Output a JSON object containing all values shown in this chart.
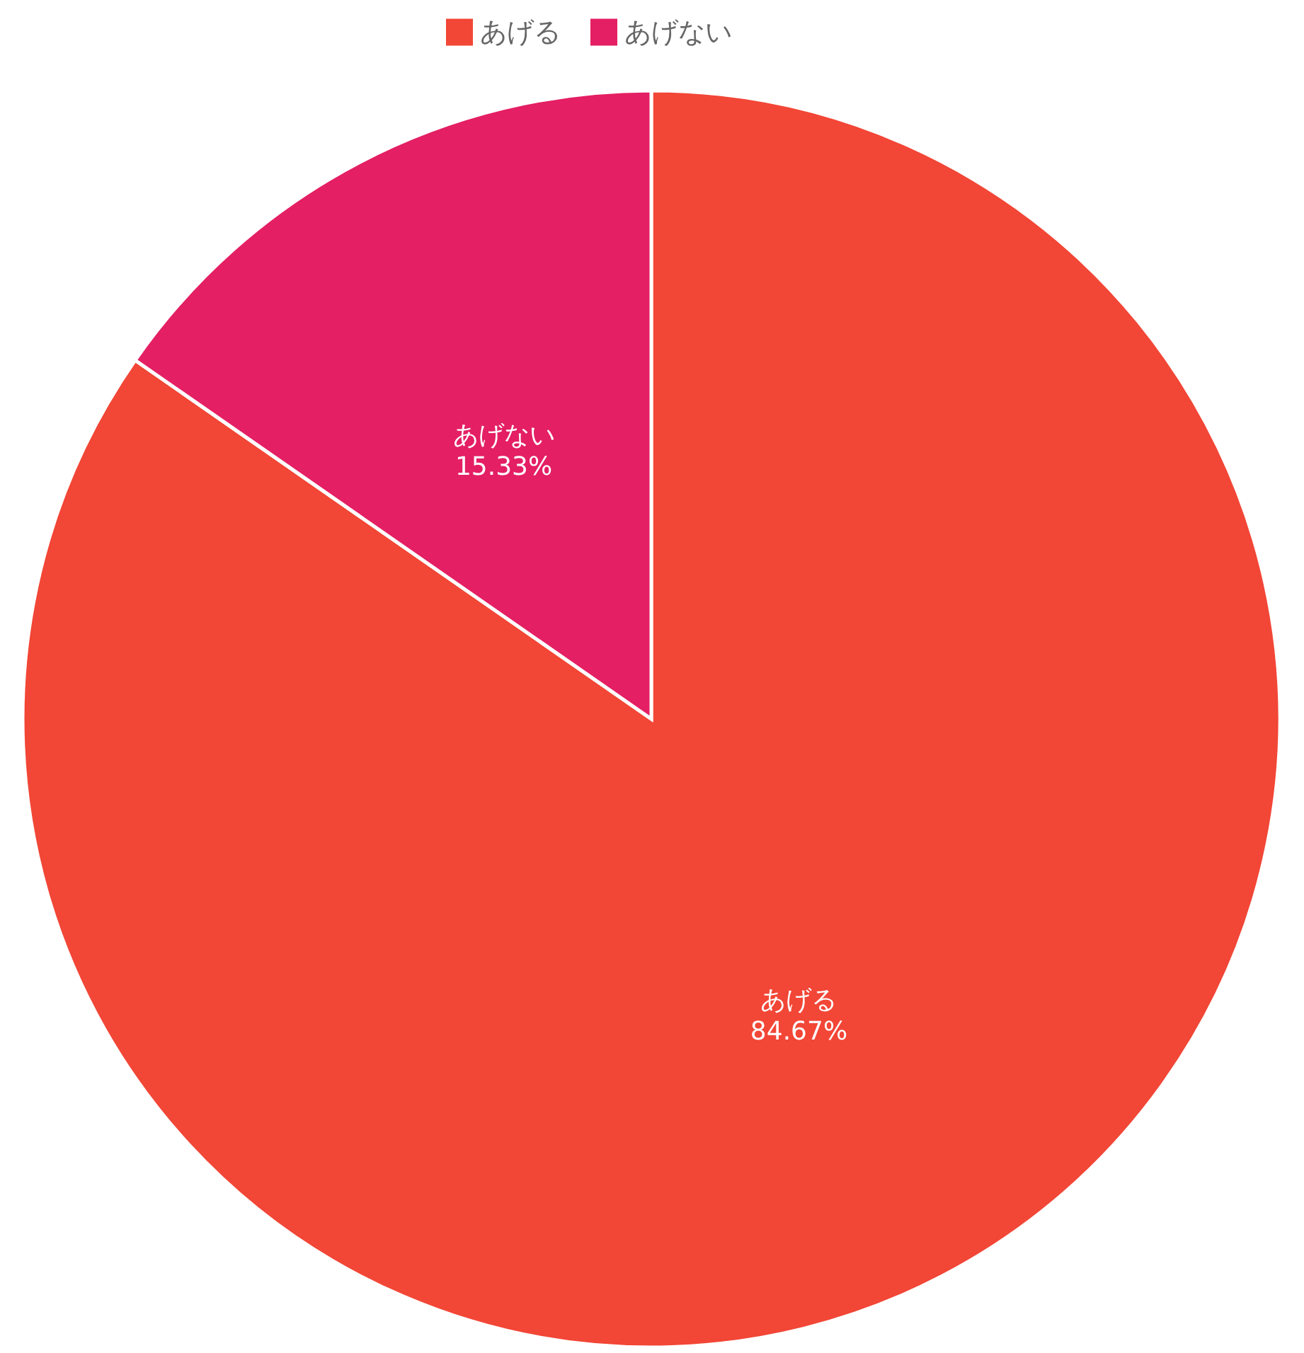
{
  "chart_data": {
    "type": "pie",
    "categories": [
      "あげる",
      "あげない"
    ],
    "values": [
      84.67,
      15.33
    ],
    "value_labels": [
      "84.67%",
      "15.33%"
    ],
    "colors": [
      "#f24636",
      "#e41f63"
    ],
    "legend": "top"
  }
}
